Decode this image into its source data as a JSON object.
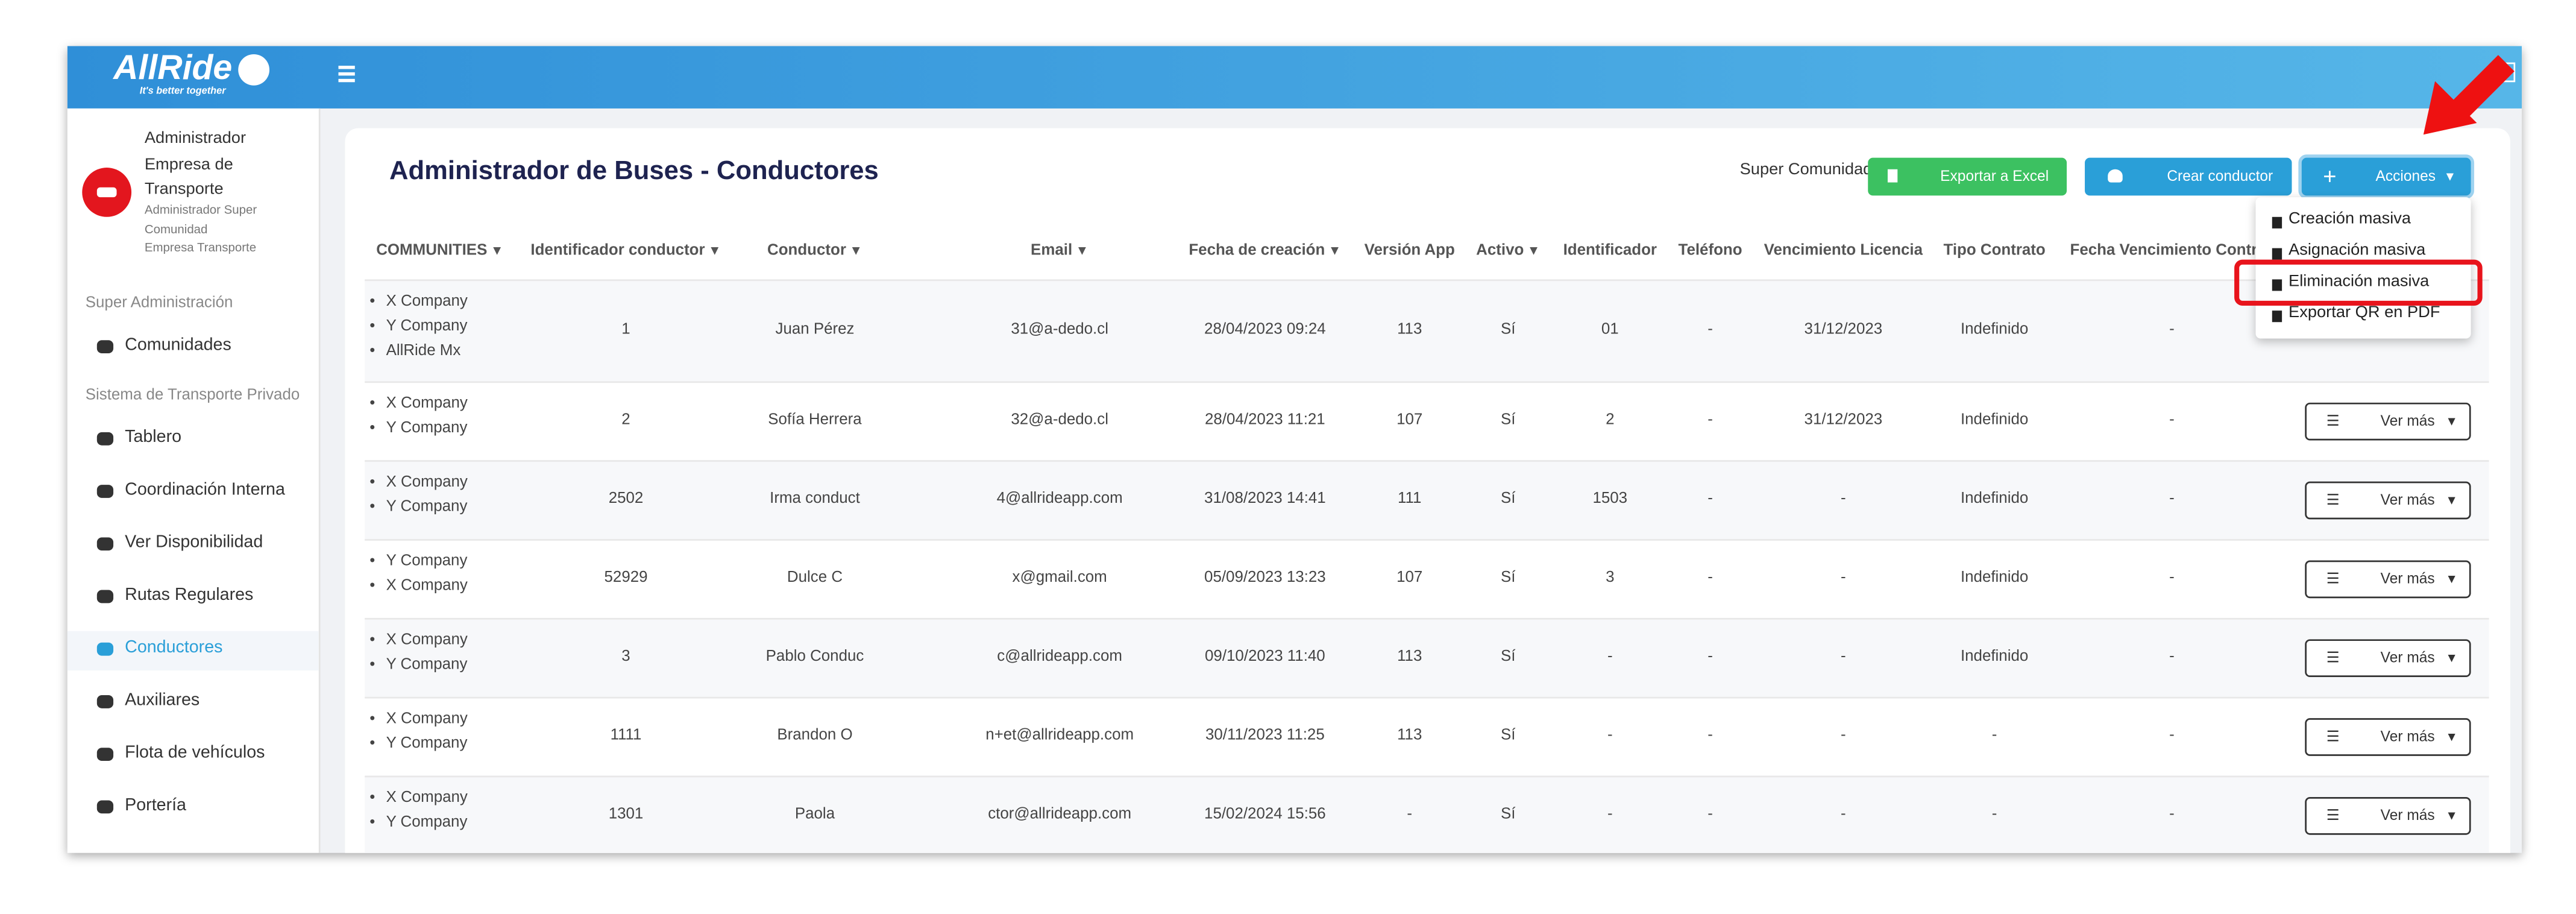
{
  "header": {
    "logo": "AllRide",
    "tagline": "It's better together"
  },
  "user": {
    "name": "Administrador",
    "company": "Empresa de Transporte",
    "role": "Administrador Super Comunidad",
    "subcompany": "Empresa Transporte"
  },
  "sidebar": {
    "active": "Conductores",
    "sections": [
      {
        "title": "Super Administración",
        "items": [
          "Comunidades"
        ]
      },
      {
        "title": "Sistema de Transporte Privado",
        "items": [
          "Tablero",
          "Coordinación Interna",
          "Ver Disponibilidad",
          "Rutas Regulares",
          "Conductores",
          "Auxiliares",
          "Flota de vehículos",
          "Portería"
        ]
      }
    ]
  },
  "page": {
    "title": "Administrador de Buses - Conductores",
    "community_label": "Super Comunidad",
    "buttons": [
      "Exportar a Excel",
      "Crear conductor",
      "Acciones"
    ],
    "actions_menu": [
      "Creación masiva",
      "Asignación masiva",
      "Eliminación masiva",
      "Exportar QR en PDF"
    ]
  },
  "table": {
    "columns": [
      "COMMUNITIES",
      "Identificador conductor",
      "Conductor",
      "Email",
      "Fecha de creación",
      "Versión App",
      "Activo",
      "Identificador",
      "Teléfono",
      "Vencimiento Licencia",
      "Tipo Contrato",
      "Fecha Vencimiento Contr"
    ],
    "row_action": "Ver más",
    "rows": [
      {
        "communities": [
          "X Company",
          "Y Company",
          "AllRide Mx"
        ],
        "cells": [
          "1",
          "Juan Pérez",
          "31@a-dedo.cl",
          "28/04/2023 09:24",
          "113",
          "Sí",
          "01",
          "-",
          "31/12/2023",
          "Indefinido",
          "-"
        ]
      },
      {
        "communities": [
          "X Company",
          "Y Company"
        ],
        "cells": [
          "2",
          "Sofía Herrera",
          "32@a-dedo.cl",
          "28/04/2023 11:21",
          "107",
          "Sí",
          "2",
          "-",
          "31/12/2023",
          "Indefinido",
          "-"
        ]
      },
      {
        "communities": [
          "X Company",
          "Y Company"
        ],
        "cells": [
          "2502",
          "Irma conduct",
          "4@allrideapp.com",
          "31/08/2023 14:41",
          "111",
          "Sí",
          "1503",
          "-",
          "-",
          "Indefinido",
          "-"
        ]
      },
      {
        "communities": [
          "Y Company",
          "X Company"
        ],
        "cells": [
          "52929",
          "Dulce C",
          "x@gmail.com",
          "05/09/2023 13:23",
          "107",
          "Sí",
          "3",
          "-",
          "-",
          "Indefinido",
          "-"
        ]
      },
      {
        "communities": [
          "X Company",
          "Y Company"
        ],
        "cells": [
          "3",
          "Pablo Conduc",
          "c@allrideapp.com",
          "09/10/2023 11:40",
          "113",
          "Sí",
          "-",
          "-",
          "-",
          "Indefinido",
          "-"
        ]
      },
      {
        "communities": [
          "X Company",
          "Y Company"
        ],
        "cells": [
          "1111",
          "Brandon O",
          "n+et@allrideapp.com",
          "30/11/2023 11:25",
          "113",
          "Sí",
          "-",
          "-",
          "-",
          "-",
          "-"
        ]
      },
      {
        "communities": [
          "X Company",
          "Y Company"
        ],
        "cells": [
          "1301",
          "Paola",
          "ctor@allrideapp.com",
          "15/02/2024 15:56",
          "-",
          "Sí",
          "-",
          "-",
          "-",
          "-",
          "-"
        ]
      }
    ]
  }
}
